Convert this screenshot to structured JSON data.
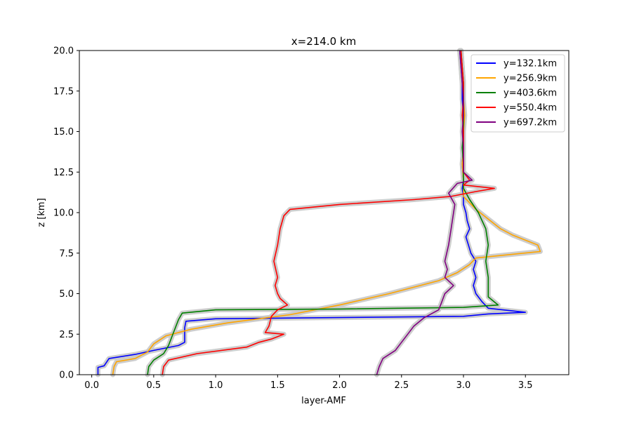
{
  "chart_data": {
    "type": "line",
    "title": "x=214.0 km",
    "xlabel": "layer-AMF",
    "ylabel": "z [km]",
    "xlim": [
      -0.1,
      3.85
    ],
    "ylim": [
      0,
      20
    ],
    "xticks": [
      0.0,
      0.5,
      1.0,
      1.5,
      2.0,
      2.5,
      3.0,
      3.5
    ],
    "yticks": [
      0.0,
      2.5,
      5.0,
      7.5,
      10.0,
      12.5,
      15.0,
      17.5,
      20.0
    ],
    "xtick_labels": [
      "0.0",
      "0.5",
      "1.0",
      "1.5",
      "2.0",
      "2.5",
      "3.0",
      "3.5"
    ],
    "ytick_labels": [
      "0.0",
      "2.5",
      "5.0",
      "7.5",
      "10.0",
      "12.5",
      "15.0",
      "17.5",
      "20.0"
    ],
    "grid": false,
    "legend_position": "top-right",
    "uncertainty_color": "#c8c8c8",
    "series": [
      {
        "name": "y=132.1km",
        "color": "#0000ff",
        "points": [
          [
            0.05,
            0
          ],
          [
            0.05,
            0.45
          ],
          [
            0.1,
            0.55
          ],
          [
            0.14,
            1.0
          ],
          [
            0.35,
            1.25
          ],
          [
            0.5,
            1.5
          ],
          [
            0.6,
            1.65
          ],
          [
            0.7,
            1.8
          ],
          [
            0.75,
            2.0
          ],
          [
            0.75,
            2.9
          ],
          [
            0.76,
            3.3
          ],
          [
            1.0,
            3.45
          ],
          [
            3.0,
            3.6
          ],
          [
            3.2,
            3.75
          ],
          [
            3.5,
            3.85
          ],
          [
            3.2,
            4.1
          ],
          [
            3.15,
            4.5
          ],
          [
            3.1,
            5.0
          ],
          [
            3.08,
            5.5
          ],
          [
            3.1,
            6.0
          ],
          [
            3.08,
            6.5
          ],
          [
            3.1,
            7.0
          ],
          [
            3.06,
            7.5
          ],
          [
            3.04,
            8.0
          ],
          [
            3.02,
            8.5
          ],
          [
            3.05,
            9.0
          ],
          [
            3.03,
            9.5
          ],
          [
            3.02,
            10.0
          ],
          [
            3.0,
            10.5
          ],
          [
            3.0,
            11.0
          ],
          [
            2.99,
            11.5
          ],
          [
            3.0,
            12.0
          ],
          [
            2.99,
            13.0
          ],
          [
            3.0,
            14.0
          ],
          [
            3.0,
            15.0
          ],
          [
            3.0,
            16.0
          ],
          [
            2.99,
            17.0
          ],
          [
            2.99,
            18.0
          ],
          [
            2.98,
            19.0
          ],
          [
            2.97,
            20.0
          ]
        ]
      },
      {
        "name": "y=256.9km",
        "color": "#ffa500",
        "points": [
          [
            0.17,
            0
          ],
          [
            0.18,
            0.5
          ],
          [
            0.2,
            0.8
          ],
          [
            0.35,
            1.0
          ],
          [
            0.45,
            1.4
          ],
          [
            0.5,
            1.9
          ],
          [
            0.6,
            2.4
          ],
          [
            0.8,
            2.8
          ],
          [
            1.1,
            3.2
          ],
          [
            1.6,
            3.7
          ],
          [
            2.0,
            4.3
          ],
          [
            2.4,
            5.0
          ],
          [
            2.8,
            5.8
          ],
          [
            2.95,
            6.3
          ],
          [
            3.05,
            6.8
          ],
          [
            3.1,
            7.2
          ],
          [
            3.62,
            7.6
          ],
          [
            3.6,
            8.0
          ],
          [
            3.5,
            8.3
          ],
          [
            3.4,
            8.6
          ],
          [
            3.3,
            9.0
          ],
          [
            3.2,
            9.6
          ],
          [
            3.1,
            10.2
          ],
          [
            3.05,
            10.6
          ],
          [
            3.0,
            11.0
          ],
          [
            3.0,
            11.5
          ],
          [
            3.0,
            12.0
          ],
          [
            2.99,
            13.0
          ],
          [
            3.0,
            14.0
          ],
          [
            3.0,
            15.0
          ],
          [
            3.01,
            16.0
          ],
          [
            3.0,
            17.0
          ],
          [
            3.0,
            18.0
          ],
          [
            2.99,
            19.0
          ],
          [
            2.98,
            20.0
          ]
        ]
      },
      {
        "name": "y=403.6km",
        "color": "#008000",
        "points": [
          [
            0.45,
            0
          ],
          [
            0.46,
            0.5
          ],
          [
            0.5,
            0.9
          ],
          [
            0.58,
            1.3
          ],
          [
            0.62,
            1.8
          ],
          [
            0.66,
            2.6
          ],
          [
            0.7,
            3.4
          ],
          [
            0.73,
            3.8
          ],
          [
            1.0,
            4.0
          ],
          [
            2.0,
            4.05
          ],
          [
            3.0,
            4.15
          ],
          [
            3.28,
            4.3
          ],
          [
            3.2,
            4.8
          ],
          [
            3.2,
            5.5
          ],
          [
            3.2,
            6.0
          ],
          [
            3.18,
            7.0
          ],
          [
            3.2,
            8.0
          ],
          [
            3.18,
            9.0
          ],
          [
            3.12,
            10.0
          ],
          [
            3.05,
            10.8
          ],
          [
            3.0,
            11.5
          ],
          [
            3.0,
            12.5
          ],
          [
            3.0,
            13.0
          ],
          [
            2.99,
            14.0
          ],
          [
            3.0,
            15.0
          ],
          [
            3.0,
            16.0
          ],
          [
            3.0,
            17.0
          ],
          [
            3.0,
            18.0
          ],
          [
            2.99,
            19.0
          ],
          [
            2.98,
            20.0
          ]
        ]
      },
      {
        "name": "y=550.4km",
        "color": "#ff0000",
        "points": [
          [
            0.57,
            0
          ],
          [
            0.58,
            0.5
          ],
          [
            0.62,
            0.9
          ],
          [
            0.85,
            1.3
          ],
          [
            1.25,
            1.7
          ],
          [
            1.35,
            2.0
          ],
          [
            1.45,
            2.2
          ],
          [
            1.55,
            2.5
          ],
          [
            1.4,
            2.6
          ],
          [
            1.43,
            3.0
          ],
          [
            1.45,
            3.6
          ],
          [
            1.5,
            4.0
          ],
          [
            1.58,
            4.3
          ],
          [
            1.52,
            4.7
          ],
          [
            1.5,
            5.0
          ],
          [
            1.48,
            5.5
          ],
          [
            1.5,
            6.0
          ],
          [
            1.47,
            7.0
          ],
          [
            1.5,
            8.0
          ],
          [
            1.52,
            9.0
          ],
          [
            1.55,
            9.8
          ],
          [
            1.6,
            10.2
          ],
          [
            2.0,
            10.5
          ],
          [
            2.6,
            10.8
          ],
          [
            2.9,
            11.0
          ],
          [
            3.1,
            11.3
          ],
          [
            3.25,
            11.5
          ],
          [
            3.0,
            11.7
          ],
          [
            3.05,
            12.0
          ],
          [
            3.0,
            12.5
          ],
          [
            3.0,
            13.0
          ],
          [
            3.0,
            14.0
          ],
          [
            3.0,
            15.0
          ],
          [
            2.99,
            16.0
          ],
          [
            3.0,
            17.0
          ],
          [
            3.0,
            18.0
          ],
          [
            2.99,
            19.0
          ],
          [
            2.98,
            20.0
          ]
        ]
      },
      {
        "name": "y=697.2km",
        "color": "#800080",
        "points": [
          [
            2.3,
            0
          ],
          [
            2.32,
            0.5
          ],
          [
            2.35,
            1.0
          ],
          [
            2.45,
            1.5
          ],
          [
            2.5,
            2.0
          ],
          [
            2.55,
            2.5
          ],
          [
            2.6,
            3.0
          ],
          [
            2.68,
            3.5
          ],
          [
            2.8,
            4.0
          ],
          [
            2.82,
            4.4
          ],
          [
            2.85,
            5.0
          ],
          [
            2.92,
            5.5
          ],
          [
            2.85,
            6.0
          ],
          [
            2.87,
            6.5
          ],
          [
            2.85,
            7.0
          ],
          [
            2.88,
            8.0
          ],
          [
            2.9,
            9.0
          ],
          [
            2.92,
            10.0
          ],
          [
            2.93,
            10.5
          ],
          [
            2.88,
            11.2
          ],
          [
            2.95,
            11.8
          ],
          [
            3.07,
            12.0
          ],
          [
            3.0,
            12.5
          ],
          [
            3.0,
            13.0
          ],
          [
            3.0,
            14.0
          ],
          [
            2.99,
            15.0
          ],
          [
            3.0,
            16.0
          ],
          [
            3.0,
            17.0
          ],
          [
            2.99,
            18.0
          ],
          [
            2.98,
            19.0
          ],
          [
            2.97,
            20.0
          ]
        ]
      }
    ]
  }
}
